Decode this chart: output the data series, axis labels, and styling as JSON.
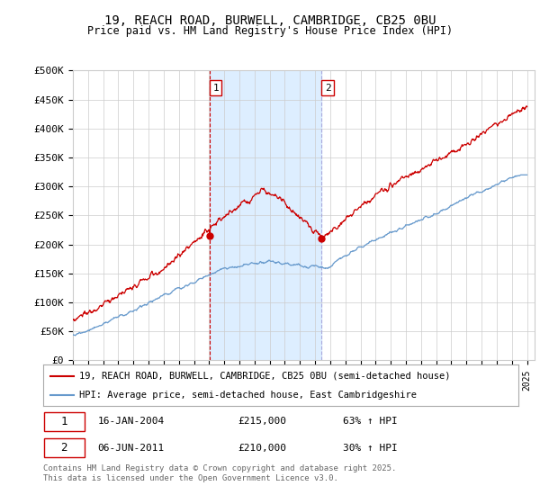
{
  "title_line1": "19, REACH ROAD, BURWELL, CAMBRIDGE, CB25 0BU",
  "title_line2": "Price paid vs. HM Land Registry's House Price Index (HPI)",
  "ylabel_ticks": [
    "£0",
    "£50K",
    "£100K",
    "£150K",
    "£200K",
    "£250K",
    "£300K",
    "£350K",
    "£400K",
    "£450K",
    "£500K"
  ],
  "ytick_values": [
    0,
    50000,
    100000,
    150000,
    200000,
    250000,
    300000,
    350000,
    400000,
    450000,
    500000
  ],
  "year_start": 1995,
  "year_end": 2025,
  "purchase1_year": 2004.04,
  "purchase1_price": 215000,
  "purchase2_year": 2011.43,
  "purchase2_price": 210000,
  "legend_red": "19, REACH ROAD, BURWELL, CAMBRIDGE, CB25 0BU (semi-detached house)",
  "legend_blue": "HPI: Average price, semi-detached house, East Cambridgeshire",
  "annot1_date": "16-JAN-2004",
  "annot1_price": "£215,000",
  "annot1_hpi": "63% ↑ HPI",
  "annot2_date": "06-JUN-2011",
  "annot2_price": "£210,000",
  "annot2_hpi": "30% ↑ HPI",
  "footnote": "Contains HM Land Registry data © Crown copyright and database right 2025.\nThis data is licensed under the Open Government Licence v3.0.",
  "red_color": "#cc0000",
  "blue_color": "#6699cc",
  "shade_color": "#ddeeff",
  "background_color": "#ffffff",
  "grid_color": "#cccccc"
}
